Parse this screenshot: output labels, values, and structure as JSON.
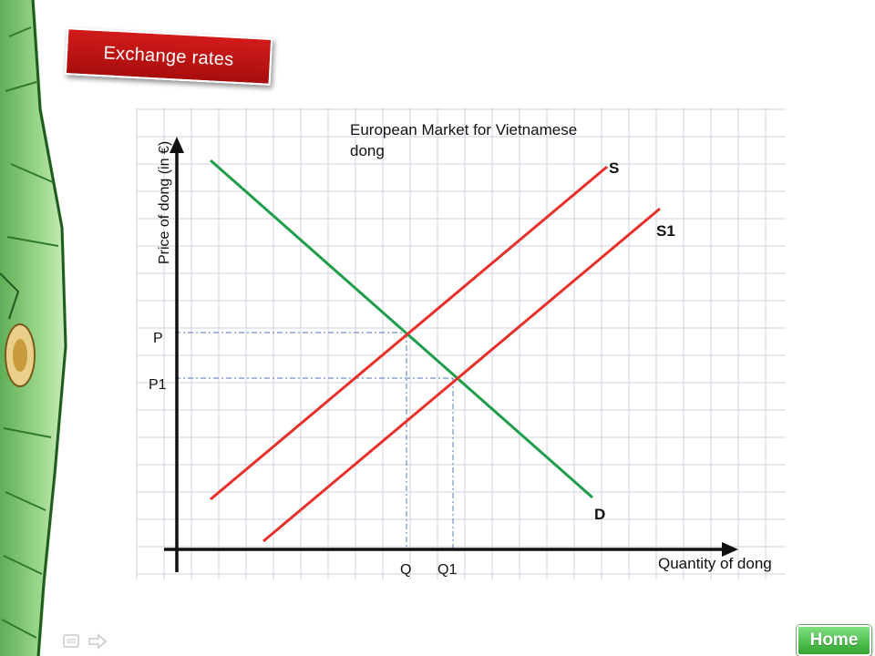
{
  "slide": {
    "heading": "Exchange rates",
    "home_button": "Home"
  },
  "diagram": {
    "title_line1": "European Market for Vietnamese",
    "title_line2": "dong",
    "y_axis_label": "Price of dong (in €)",
    "x_axis_label": "Quantity of dong",
    "curve_labels": {
      "supply": "S",
      "supply_new": "S1",
      "demand": "D"
    },
    "price_labels": [
      "P",
      "P1"
    ],
    "quantity_labels": [
      "Q",
      "Q1"
    ],
    "colors": {
      "supply": "#e8302a",
      "demand": "#1e9e4a",
      "grid": "#cfd3dc",
      "axis": "#111111",
      "guide": "#6f8fc0"
    }
  },
  "icons": {
    "nav_left": "notes-icon",
    "nav_right": "arrow-right-icon"
  }
}
